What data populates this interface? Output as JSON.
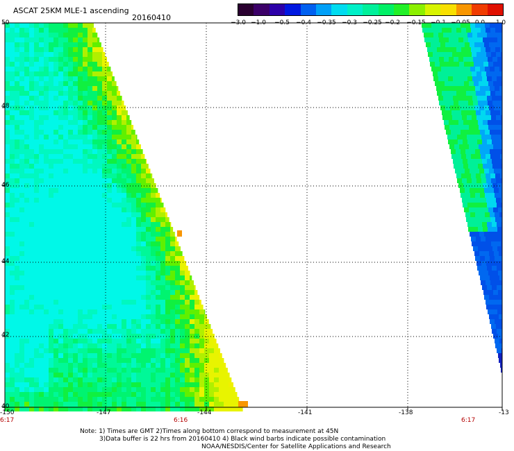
{
  "header": {
    "title": "ASCAT 25KM MLE-1 ascending",
    "date": "20160410"
  },
  "colorbar": {
    "colors": [
      "#2a0030",
      "#3c0068",
      "#2c00a8",
      "#0018e0",
      "#0060f0",
      "#00a0f8",
      "#00dcf0",
      "#00f0c8",
      "#00f09a",
      "#00f066",
      "#22f028",
      "#8cf000",
      "#d8f400",
      "#f8e000",
      "#f89600",
      "#f03c00",
      "#e01000"
    ],
    "labels": [
      "−3.0",
      "−1.0",
      "−0.5",
      "−0.4",
      "−0.35",
      "−0.3",
      "−0.25",
      "−0.2",
      "−0.15",
      "−0.1",
      "−0.05",
      "0.0",
      "1.0"
    ]
  },
  "map": {
    "lat_labels": [
      "50",
      "48",
      "46",
      "44",
      "42",
      "40"
    ],
    "lon_labels": [
      "-150",
      "-147",
      "-144",
      "-141",
      "-138",
      "-13"
    ],
    "time_labels": [
      "6:17",
      "6:16",
      "6:17"
    ]
  },
  "notes": {
    "line1": "Note: 1) Times are GMT 2)Times along bottom correspond to measurement at 45N",
    "line2": "3)Data buffer is 22 hrs from 20160410 4) Black wind barbs indicate possible contamination",
    "line3": "NOAA/NESDIS/Center for Satellite Applications and Research"
  }
}
